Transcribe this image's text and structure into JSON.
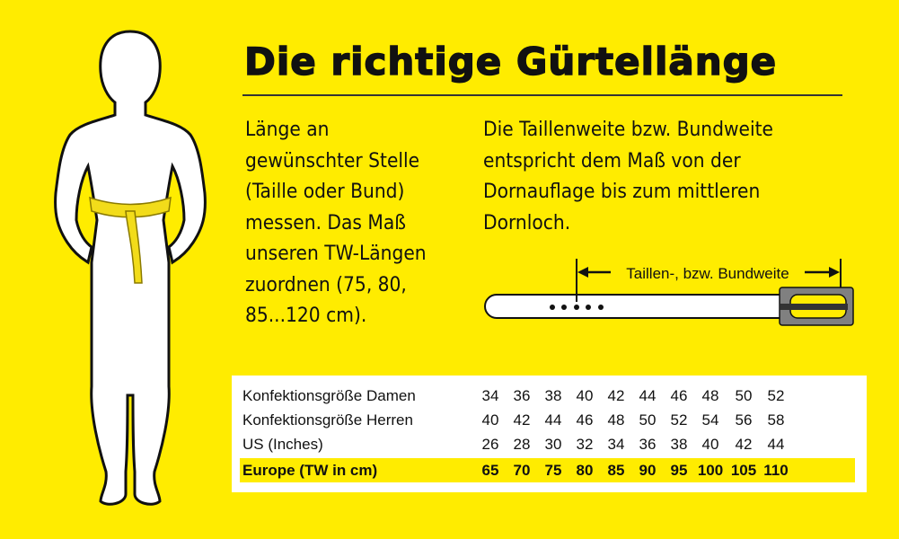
{
  "title": "Die richtige Gürtellänge",
  "left_text": [
    "Länge an",
    "gewünschter Stelle",
    "(Taille oder Bund)",
    "messen. Das Maß",
    "unseren TW-Längen",
    "zuordnen (75, 80,",
    "85...120 cm)."
  ],
  "right_text": [
    "Die Taillenweite bzw. Bundweite",
    "entspricht dem Maß von der",
    "Dornauflage bis zum mittleren",
    "Dornloch."
  ],
  "belt_label": "Taillen-, bzw. Bundweite",
  "colors": {
    "background": "#ffec00",
    "table_bg": "#ffffff",
    "buckle": "#808080"
  },
  "table": {
    "rows": [
      {
        "label": "Konfektionsgröße Damen",
        "values": [
          "34",
          "36",
          "38",
          "40",
          "42",
          "44",
          "46",
          "48",
          "50",
          "52"
        ]
      },
      {
        "label": "Konfektionsgröße Herren",
        "values": [
          "40",
          "42",
          "44",
          "46",
          "48",
          "50",
          "52",
          "54",
          "56",
          "58"
        ]
      },
      {
        "label": "US (Inches)",
        "values": [
          "26",
          "28",
          "30",
          "32",
          "34",
          "36",
          "38",
          "40",
          "42",
          "44"
        ]
      },
      {
        "label": "Europe (TW in cm)",
        "values": [
          "65",
          "70",
          "75",
          "80",
          "85",
          "90",
          "95",
          "100",
          "105",
          "110"
        ],
        "highlighted": true
      }
    ]
  }
}
